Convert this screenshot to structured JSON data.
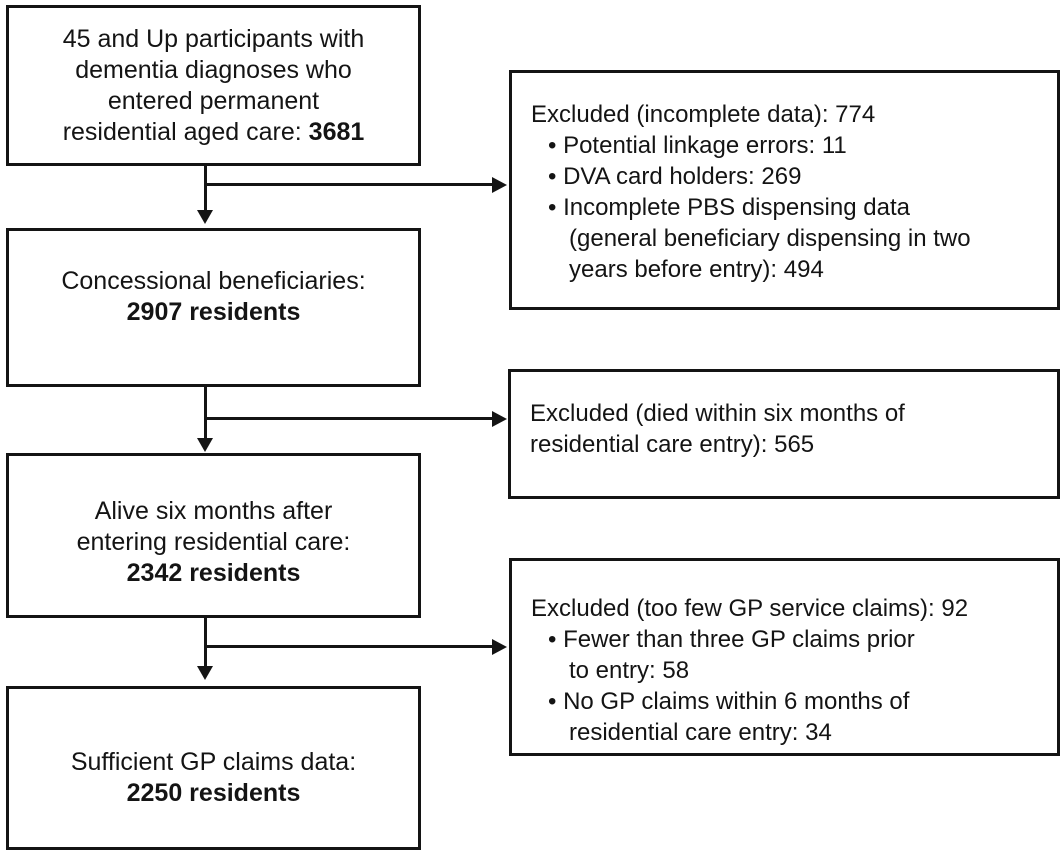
{
  "figure": {
    "type": "participant-flow-diagram",
    "background": "#ffffff",
    "ink": "#141414"
  },
  "main_flow": [
    {
      "name": "participants-with-dementia",
      "lines": [
        {
          "indent": 0,
          "segments": [
            {
              "t": "45 and Up participants with",
              "b": false
            }
          ]
        },
        {
          "indent": 0,
          "segments": [
            {
              "t": "dementia diagnoses who",
              "b": false
            }
          ]
        },
        {
          "indent": 0,
          "segments": [
            {
              "t": "entered permanent",
              "b": false
            }
          ]
        },
        {
          "indent": 0,
          "segments": [
            {
              "t": "residential aged care: ",
              "b": false
            },
            {
              "t": "3681",
              "b": true
            }
          ]
        }
      ]
    },
    {
      "name": "concessional-beneficiaries",
      "lines": [
        {
          "indent": 0,
          "segments": [
            {
              "t": "Concessional beneficiaries:",
              "b": false
            }
          ]
        },
        {
          "indent": 0,
          "segments": [
            {
              "t": "2907 residents",
              "b": true
            }
          ]
        }
      ]
    },
    {
      "name": "alive-six-months",
      "lines": [
        {
          "indent": 0,
          "segments": [
            {
              "t": "Alive six months after",
              "b": false
            }
          ]
        },
        {
          "indent": 0,
          "segments": [
            {
              "t": "entering residential care:",
              "b": false
            }
          ]
        },
        {
          "indent": 0,
          "segments": [
            {
              "t": "2342 residents",
              "b": true
            }
          ]
        }
      ]
    },
    {
      "name": "sufficient-gp-claims",
      "lines": [
        {
          "indent": 0,
          "segments": [
            {
              "t": "Sufficient GP claims data:",
              "b": false
            }
          ]
        },
        {
          "indent": 0,
          "segments": [
            {
              "t": "2250 residents",
              "b": true
            }
          ]
        }
      ]
    }
  ],
  "exclusions": [
    {
      "name": "excluded-incomplete-data",
      "lines": [
        {
          "indent": 0,
          "segments": [
            {
              "t": "Excluded (incomplete data): 774",
              "b": false
            }
          ]
        },
        {
          "indent": 1,
          "segments": [
            {
              "t": "• Potential linkage errors: 11",
              "b": false
            }
          ]
        },
        {
          "indent": 1,
          "segments": [
            {
              "t": "• DVA card holders: 269",
              "b": false
            }
          ]
        },
        {
          "indent": 1,
          "segments": [
            {
              "t": "• Incomplete PBS dispensing data",
              "b": false
            }
          ]
        },
        {
          "indent": 2,
          "segments": [
            {
              "t": "(general beneficiary dispensing in two",
              "b": false
            }
          ]
        },
        {
          "indent": 2,
          "segments": [
            {
              "t": "years before entry): 494",
              "b": false
            }
          ]
        }
      ]
    },
    {
      "name": "excluded-died-within-six-months",
      "lines": [
        {
          "indent": 0,
          "segments": [
            {
              "t": "Excluded (died within six months of",
              "b": false
            }
          ]
        },
        {
          "indent": 0,
          "segments": [
            {
              "t": "residential care entry): 565",
              "b": false
            }
          ]
        }
      ]
    },
    {
      "name": "excluded-too-few-gp-claims",
      "lines": [
        {
          "indent": 0,
          "segments": [
            {
              "t": "Excluded (too few GP service claims): 92",
              "b": false
            }
          ]
        },
        {
          "indent": 1,
          "segments": [
            {
              "t": "• Fewer than three GP claims prior",
              "b": false
            }
          ]
        },
        {
          "indent": 2,
          "segments": [
            {
              "t": "to entry: 58",
              "b": false
            }
          ]
        },
        {
          "indent": 1,
          "segments": [
            {
              "t": "• No GP claims within 6 months of",
              "b": false
            }
          ]
        },
        {
          "indent": 2,
          "segments": [
            {
              "t": "residential care entry: 34",
              "b": false
            }
          ]
        }
      ]
    }
  ]
}
